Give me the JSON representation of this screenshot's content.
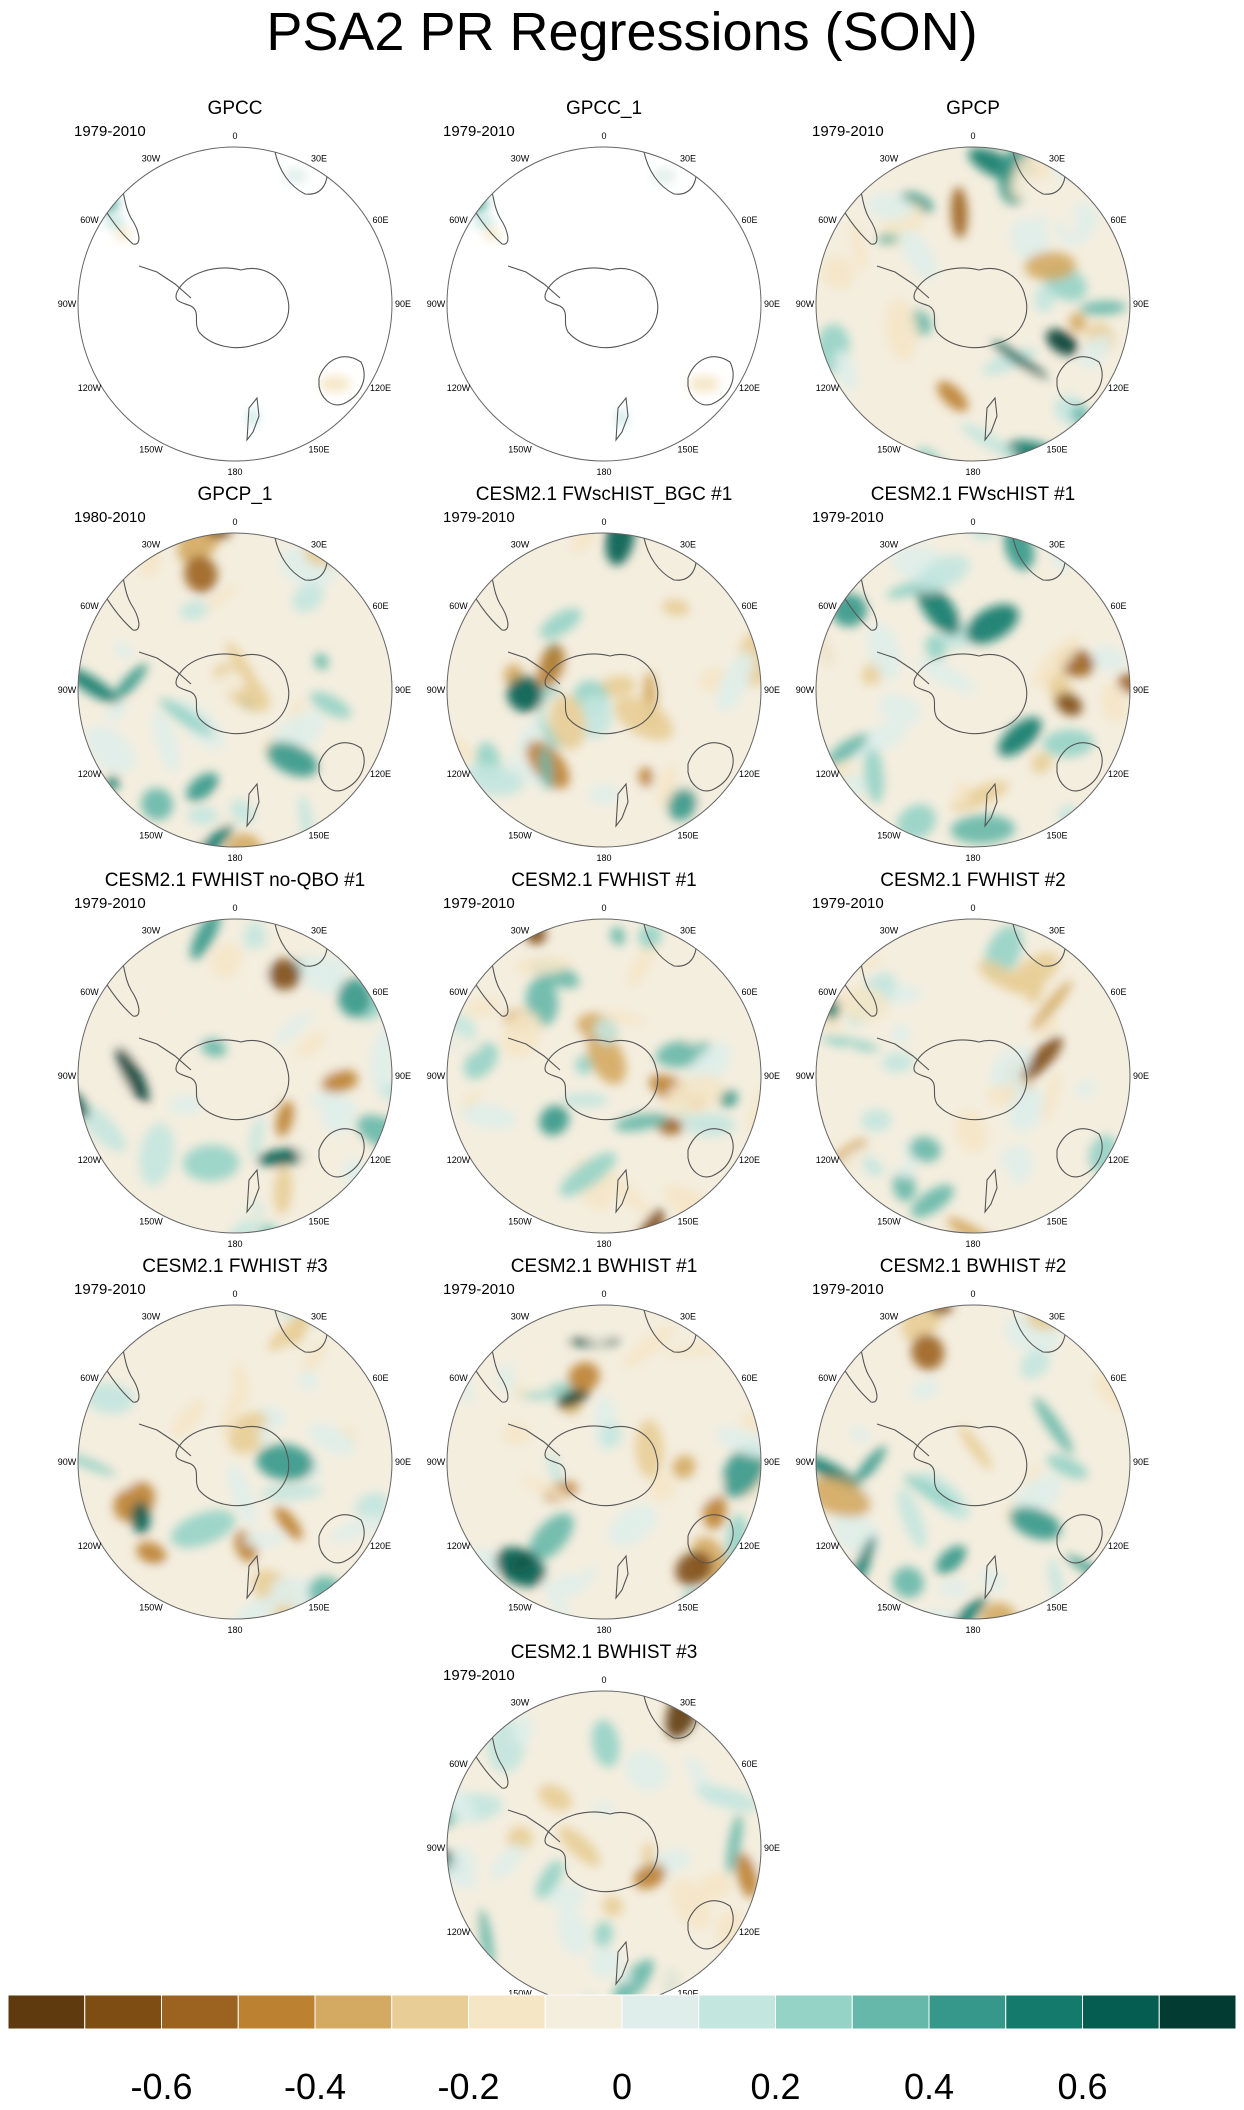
{
  "title": "PSA2 PR Regressions (SON)",
  "colors": {
    "map_background": "#f4eedf",
    "coast": "#555555",
    "circle": "#666666"
  },
  "longitude_labels": [
    "0",
    "30E",
    "60E",
    "90E",
    "120E",
    "150E",
    "180",
    "150W",
    "120W",
    "90W",
    "60W",
    "30W"
  ],
  "panels": [
    {
      "title": "GPCC",
      "period": "1979-2010",
      "coverage": "land-only"
    },
    {
      "title": "GPCC_1",
      "period": "1979-2010",
      "coverage": "land-only"
    },
    {
      "title": "GPCP",
      "period": "1979-2010",
      "coverage": "full"
    },
    {
      "title": "GPCP_1",
      "period": "1980-2010",
      "coverage": "full"
    },
    {
      "title": "CESM2.1 FWscHIST_BGC #1",
      "period": "1979-2010",
      "coverage": "full"
    },
    {
      "title": "CESM2.1 FWscHIST #1",
      "period": "1979-2010",
      "coverage": "full"
    },
    {
      "title": "CESM2.1 FWHIST no-QBO #1",
      "period": "1979-2010",
      "coverage": "full"
    },
    {
      "title": "CESM2.1 FWHIST #1",
      "period": "1979-2010",
      "coverage": "full"
    },
    {
      "title": "CESM2.1 FWHIST #2",
      "period": "1979-2010",
      "coverage": "full"
    },
    {
      "title": "CESM2.1 FWHIST #3",
      "period": "1979-2010",
      "coverage": "full"
    },
    {
      "title": "CESM2.1 BWHIST #1",
      "period": "1979-2010",
      "coverage": "full"
    },
    {
      "title": "CESM2.1 BWHIST #2",
      "period": "1979-2010",
      "coverage": "full"
    },
    {
      "title": "CESM2.1 BWHIST #3",
      "period": "1979-2010",
      "coverage": "full"
    }
  ],
  "colorbar": {
    "colors": [
      "#5e3a0e",
      "#7e4d14",
      "#9c6320",
      "#bd8132",
      "#d4aa63",
      "#e8cd96",
      "#f5e6c6",
      "#f4eedf",
      "#dfeeea",
      "#c3e6df",
      "#95d3c6",
      "#66b8aa",
      "#35988a",
      "#137a6c",
      "#055c50",
      "#013b32"
    ],
    "tick_labels": [
      "-0.6",
      "-0.4",
      "-0.2",
      "0",
      "0.2",
      "0.4",
      "0.6"
    ]
  }
}
